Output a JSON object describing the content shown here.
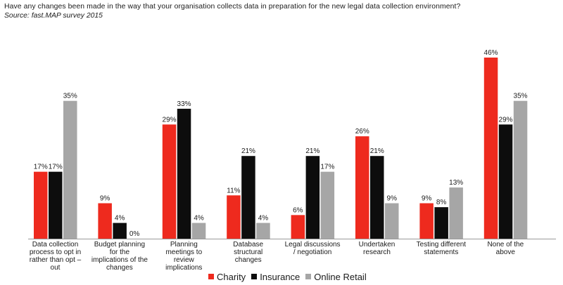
{
  "title": "Have any changes been made in the way that your organisation collects data in preparation for the new legal data collection environment?",
  "subtitle": "Source: fast.MAP survey 2015",
  "chart_data": {
    "type": "bar",
    "categories": [
      "Data collection process to opt in rather than opt – out",
      "Budget planning for the implications of the changes",
      "Planning meetings to review implications",
      "Database structural changes",
      "Legal discussions / negotiation",
      "Undertaken research",
      "Testing different statements",
      "None of the above"
    ],
    "category_lines": [
      [
        "Data collection",
        "process to opt in",
        "rather than opt –",
        "out"
      ],
      [
        "Budget planning",
        "for the",
        "implications of the",
        "changes"
      ],
      [
        "Planning",
        "meetings to",
        "review",
        "implications"
      ],
      [
        "Database",
        "structural",
        "changes"
      ],
      [
        "Legal discussions",
        "/ negotiation"
      ],
      [
        "Undertaken",
        "research"
      ],
      [
        "Testing different",
        "statements"
      ],
      [
        "None of the",
        "above"
      ]
    ],
    "series": [
      {
        "name": "Charity",
        "color": "#ee2a1e",
        "values": [
          17,
          9,
          29,
          11,
          6,
          26,
          9,
          46
        ],
        "labels": [
          "17%",
          "9%",
          "29%",
          "11%",
          "6%",
          "26%",
          "9%",
          "46%"
        ]
      },
      {
        "name": "Insurance",
        "color": "#0d0d0d",
        "values": [
          17,
          4,
          33,
          21,
          21,
          21,
          8,
          29
        ],
        "labels": [
          "17%",
          "4%",
          "33%",
          "21%",
          "21%",
          "21%",
          "8%",
          "29%"
        ]
      },
      {
        "name": "Online Retail",
        "color": "#a6a6a6",
        "values": [
          35,
          0,
          4,
          4,
          17,
          9,
          13,
          35
        ],
        "labels": [
          "35%",
          "0%",
          "4%",
          "4%",
          "17%",
          "9%",
          "13%",
          "35%"
        ]
      }
    ],
    "ylim": [
      0,
      46
    ],
    "grid": false,
    "legend_position": "bottom"
  }
}
